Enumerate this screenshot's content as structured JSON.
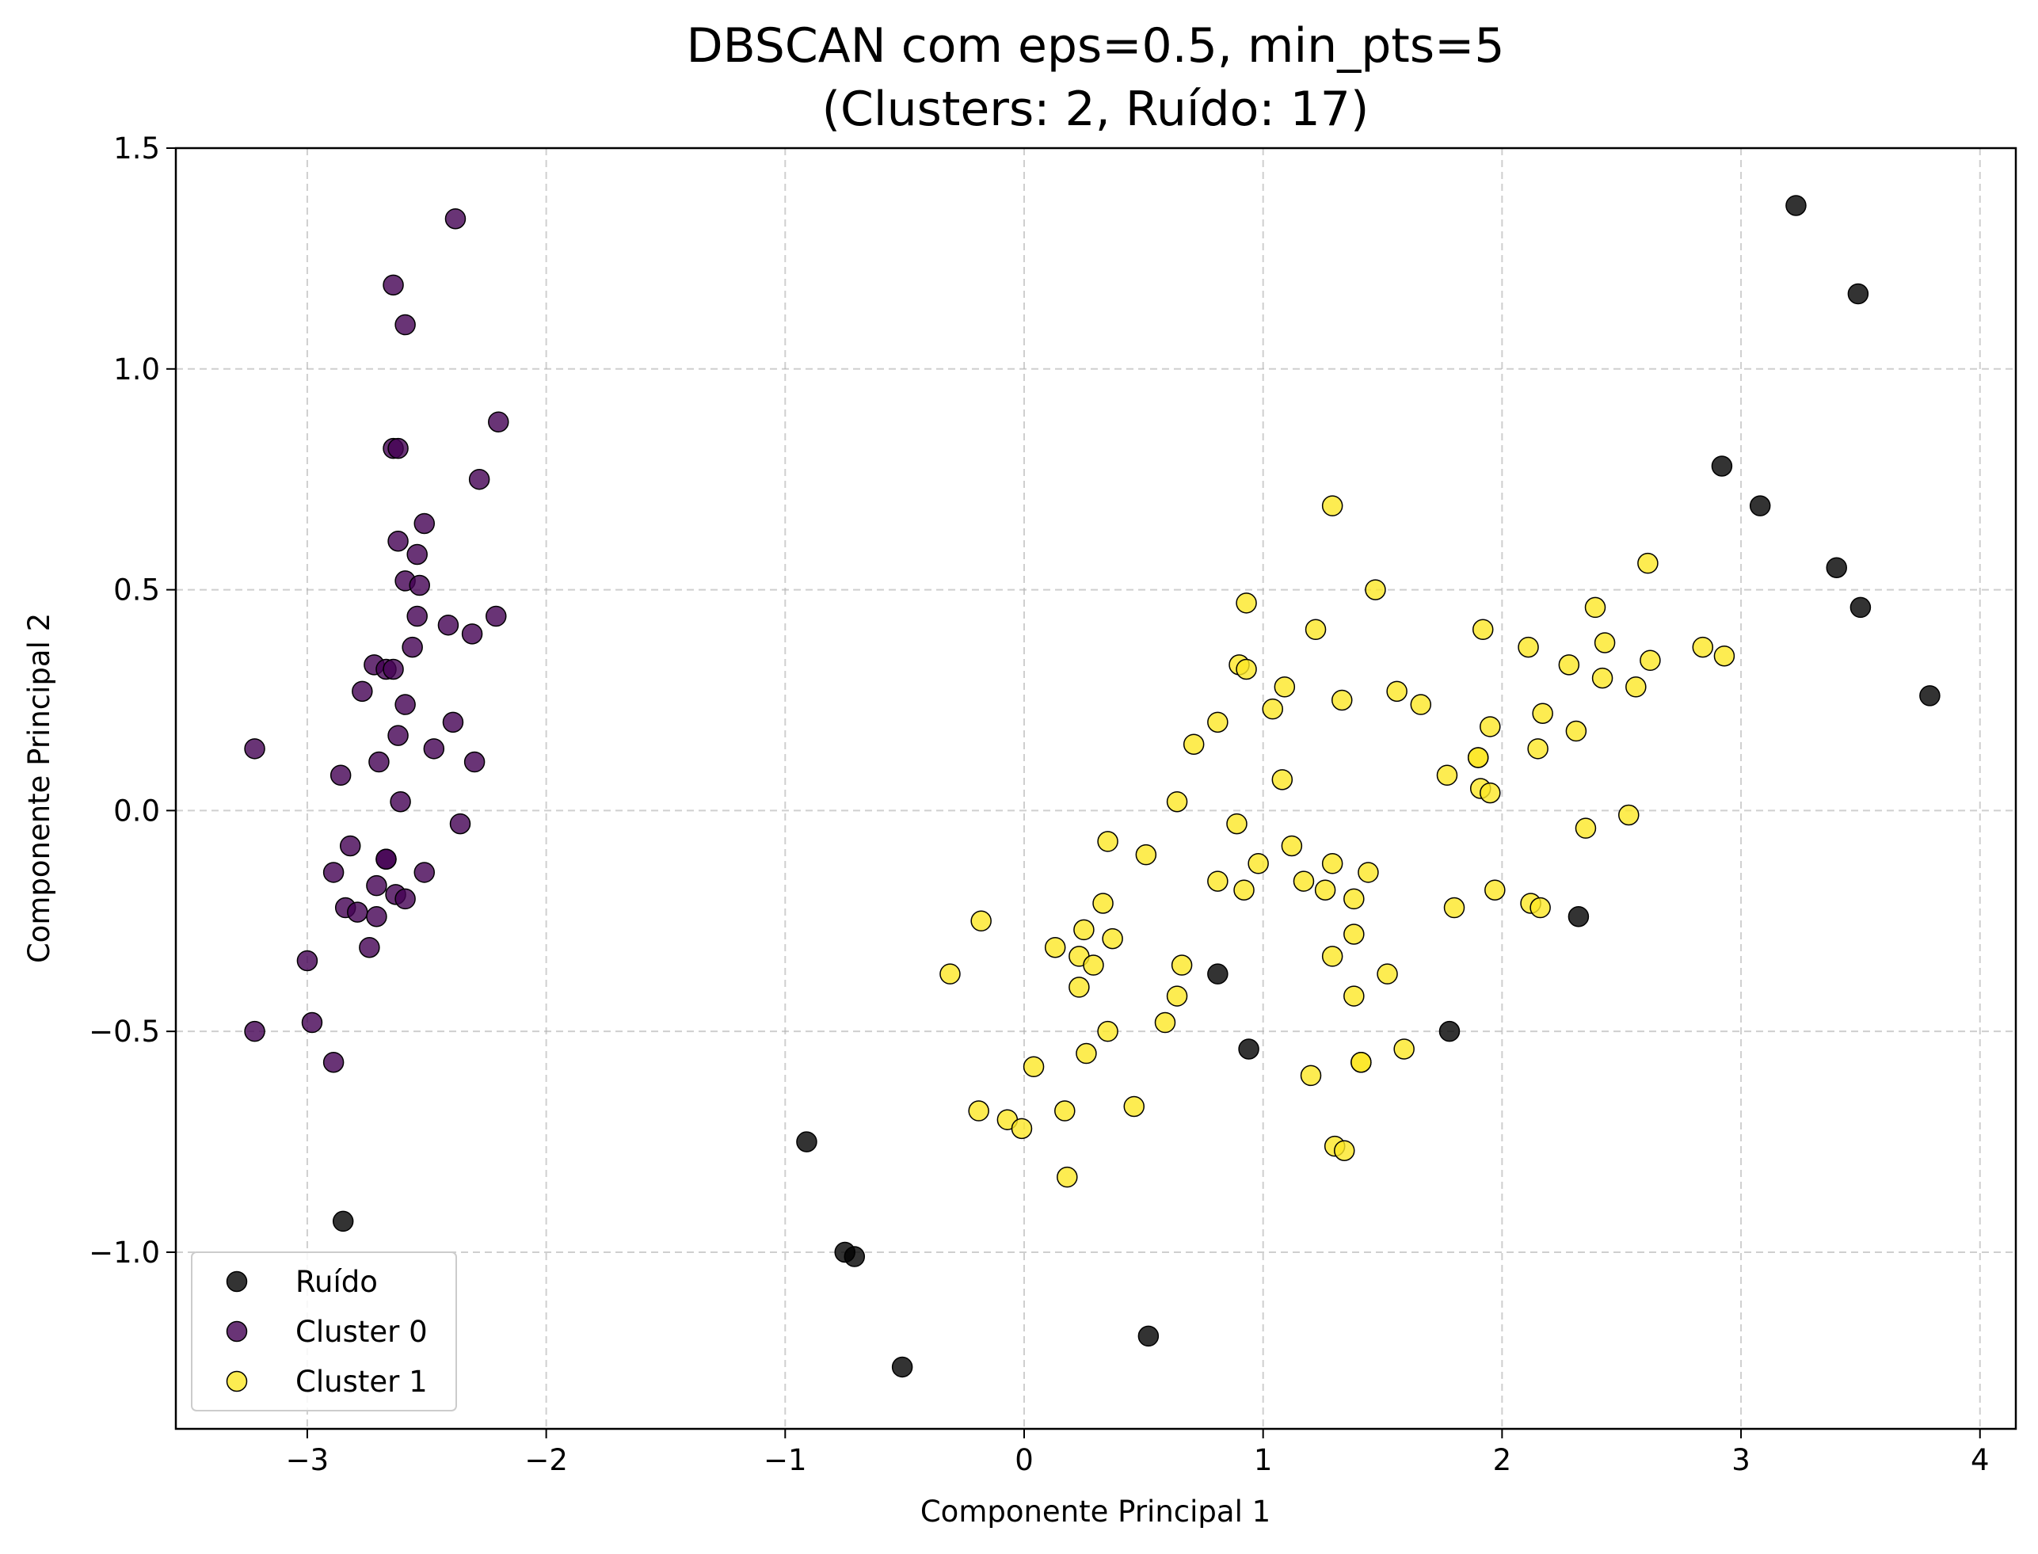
{
  "chart_data": {
    "type": "scatter",
    "title_line1": "DBSCAN com eps=0.5, min_pts=5",
    "title_line2": "(Clusters: 2, Ruído: 17)",
    "xlabel": "Componente Principal 1",
    "ylabel": "Componente Principal 2",
    "xlim": [
      -3.55,
      4.15
    ],
    "ylim": [
      -1.4,
      1.5
    ],
    "xticks": [
      -3,
      -2,
      -1,
      0,
      1,
      2,
      3,
      4
    ],
    "xtick_labels": [
      "−3",
      "−2",
      "−1",
      "0",
      "1",
      "2",
      "3",
      "4"
    ],
    "yticks": [
      -1.0,
      -0.5,
      0.0,
      0.5,
      1.0,
      1.5
    ],
    "ytick_labels": [
      "−1.0",
      "−0.5",
      "0.0",
      "0.5",
      "1.0",
      "1.5"
    ],
    "grid": true,
    "legend_position": "lower-left",
    "series": [
      {
        "name": "Ruído",
        "color": "#000000",
        "points": [
          [
            3.23,
            1.37
          ],
          [
            3.49,
            1.17
          ],
          [
            2.92,
            0.78
          ],
          [
            3.08,
            0.69
          ],
          [
            3.4,
            0.55
          ],
          [
            3.5,
            0.46
          ],
          [
            3.79,
            0.26
          ],
          [
            2.32,
            -0.24
          ],
          [
            0.81,
            -0.37
          ],
          [
            0.94,
            -0.54
          ],
          [
            1.78,
            -0.5
          ],
          [
            -0.91,
            -0.75
          ],
          [
            -0.75,
            -1.0
          ],
          [
            -0.71,
            -1.01
          ],
          [
            -2.85,
            -0.93
          ],
          [
            0.52,
            -1.19
          ],
          [
            -0.51,
            -1.26
          ]
        ]
      },
      {
        "name": "Cluster 0",
        "color": "#440154",
        "points": [
          [
            -2.38,
            1.34
          ],
          [
            -2.64,
            1.19
          ],
          [
            -2.59,
            1.1
          ],
          [
            -2.2,
            0.88
          ],
          [
            -2.64,
            0.82
          ],
          [
            -2.62,
            0.82
          ],
          [
            -2.28,
            0.75
          ],
          [
            -2.51,
            0.65
          ],
          [
            -2.62,
            0.61
          ],
          [
            -2.54,
            0.58
          ],
          [
            -2.59,
            0.52
          ],
          [
            -2.53,
            0.51
          ],
          [
            -2.54,
            0.44
          ],
          [
            -2.21,
            0.44
          ],
          [
            -2.41,
            0.42
          ],
          [
            -2.31,
            0.4
          ],
          [
            -2.56,
            0.37
          ],
          [
            -2.72,
            0.33
          ],
          [
            -2.67,
            0.32
          ],
          [
            -2.64,
            0.32
          ],
          [
            -2.77,
            0.27
          ],
          [
            -2.59,
            0.24
          ],
          [
            -2.39,
            0.2
          ],
          [
            -2.62,
            0.17
          ],
          [
            -3.22,
            0.14
          ],
          [
            -2.47,
            0.14
          ],
          [
            -2.7,
            0.11
          ],
          [
            -2.3,
            0.11
          ],
          [
            -2.86,
            0.08
          ],
          [
            -2.61,
            0.02
          ],
          [
            -2.36,
            -0.03
          ],
          [
            -2.82,
            -0.08
          ],
          [
            -2.67,
            -0.11
          ],
          [
            -2.67,
            -0.11
          ],
          [
            -2.51,
            -0.14
          ],
          [
            -2.89,
            -0.14
          ],
          [
            -2.71,
            -0.17
          ],
          [
            -2.63,
            -0.19
          ],
          [
            -2.59,
            -0.2
          ],
          [
            -2.84,
            -0.22
          ],
          [
            -2.79,
            -0.23
          ],
          [
            -2.71,
            -0.24
          ],
          [
            -2.74,
            -0.31
          ],
          [
            -3.0,
            -0.34
          ],
          [
            -2.98,
            -0.48
          ],
          [
            -3.22,
            -0.5
          ],
          [
            -2.89,
            -0.57
          ]
        ]
      },
      {
        "name": "Cluster 1",
        "color": "#fde725",
        "points": [
          [
            1.29,
            0.69
          ],
          [
            2.61,
            0.56
          ],
          [
            1.47,
            0.5
          ],
          [
            0.93,
            0.47
          ],
          [
            2.39,
            0.46
          ],
          [
            1.22,
            0.41
          ],
          [
            1.92,
            0.41
          ],
          [
            2.43,
            0.38
          ],
          [
            2.11,
            0.37
          ],
          [
            2.84,
            0.37
          ],
          [
            2.93,
            0.35
          ],
          [
            2.62,
            0.34
          ],
          [
            0.9,
            0.33
          ],
          [
            2.28,
            0.33
          ],
          [
            0.93,
            0.32
          ],
          [
            2.42,
            0.3
          ],
          [
            1.09,
            0.28
          ],
          [
            2.56,
            0.28
          ],
          [
            1.56,
            0.27
          ],
          [
            1.33,
            0.25
          ],
          [
            1.66,
            0.24
          ],
          [
            1.04,
            0.23
          ],
          [
            2.17,
            0.22
          ],
          [
            0.81,
            0.2
          ],
          [
            1.95,
            0.19
          ],
          [
            2.31,
            0.18
          ],
          [
            0.71,
            0.15
          ],
          [
            2.15,
            0.14
          ],
          [
            1.9,
            0.12
          ],
          [
            1.9,
            0.12
          ],
          [
            1.77,
            0.08
          ],
          [
            1.08,
            0.07
          ],
          [
            1.91,
            0.05
          ],
          [
            1.95,
            0.04
          ],
          [
            0.64,
            0.02
          ],
          [
            2.53,
            -0.01
          ],
          [
            0.89,
            -0.03
          ],
          [
            2.35,
            -0.04
          ],
          [
            0.35,
            -0.07
          ],
          [
            1.12,
            -0.08
          ],
          [
            0.51,
            -0.1
          ],
          [
            1.29,
            -0.12
          ],
          [
            0.98,
            -0.12
          ],
          [
            1.44,
            -0.14
          ],
          [
            0.81,
            -0.16
          ],
          [
            1.17,
            -0.16
          ],
          [
            1.26,
            -0.18
          ],
          [
            0.92,
            -0.18
          ],
          [
            1.97,
            -0.18
          ],
          [
            1.38,
            -0.2
          ],
          [
            0.33,
            -0.21
          ],
          [
            2.12,
            -0.21
          ],
          [
            2.16,
            -0.22
          ],
          [
            1.8,
            -0.22
          ],
          [
            -0.18,
            -0.25
          ],
          [
            0.25,
            -0.27
          ],
          [
            1.38,
            -0.28
          ],
          [
            0.37,
            -0.29
          ],
          [
            0.13,
            -0.31
          ],
          [
            1.29,
            -0.33
          ],
          [
            0.23,
            -0.33
          ],
          [
            0.29,
            -0.35
          ],
          [
            0.66,
            -0.35
          ],
          [
            -0.31,
            -0.37
          ],
          [
            1.52,
            -0.37
          ],
          [
            0.23,
            -0.4
          ],
          [
            0.64,
            -0.42
          ],
          [
            1.38,
            -0.42
          ],
          [
            0.59,
            -0.48
          ],
          [
            0.35,
            -0.5
          ],
          [
            1.59,
            -0.54
          ],
          [
            0.26,
            -0.55
          ],
          [
            1.41,
            -0.57
          ],
          [
            1.41,
            -0.57
          ],
          [
            0.04,
            -0.58
          ],
          [
            1.2,
            -0.6
          ],
          [
            0.46,
            -0.67
          ],
          [
            -0.19,
            -0.68
          ],
          [
            0.17,
            -0.68
          ],
          [
            -0.07,
            -0.7
          ],
          [
            -0.01,
            -0.72
          ],
          [
            1.3,
            -0.76
          ],
          [
            1.34,
            -0.77
          ],
          [
            0.18,
            -0.83
          ]
        ]
      }
    ]
  }
}
